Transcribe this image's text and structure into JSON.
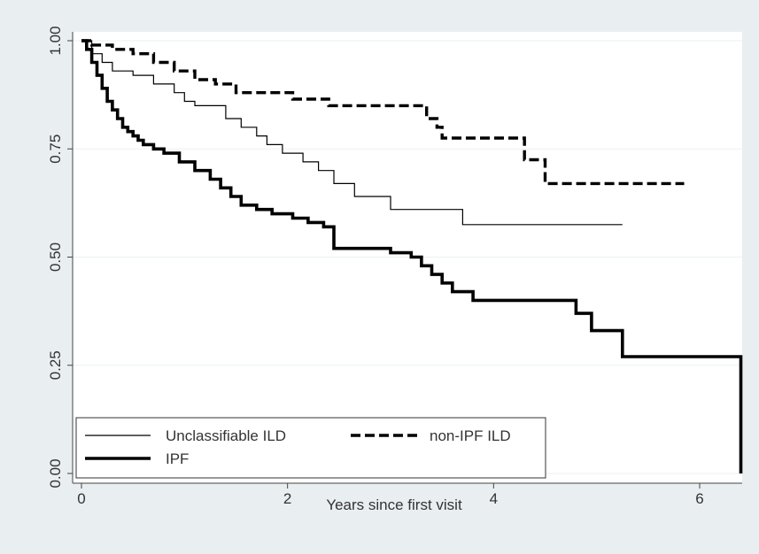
{
  "chart_data": {
    "type": "line",
    "step": true,
    "title": "",
    "xlabel": "Years since first visit",
    "ylabel": "",
    "xlim": [
      0,
      6.5
    ],
    "ylim": [
      0,
      1
    ],
    "x_ticks": [
      0,
      2,
      4,
      6
    ],
    "y_ticks": [
      0,
      0.25,
      0.5,
      0.75,
      1
    ],
    "y_tick_labels": [
      "0.00",
      "0.25",
      "0.50",
      "0.75",
      "1.00"
    ],
    "grid": true,
    "legend_placement": "bottom-left",
    "colors": {
      "outer_bg": "#e9eef1",
      "plot_bg": "#ffffff",
      "line": "#000000",
      "grid": "#eaf2f3"
    },
    "series": [
      {
        "name": "Unclassifiable ILD",
        "style": "thin",
        "x": [
          0,
          0.1,
          0.2,
          0.3,
          0.5,
          0.7,
          0.9,
          1.0,
          1.1,
          1.4,
          1.55,
          1.7,
          1.8,
          1.95,
          2.15,
          2.3,
          2.45,
          2.65,
          2.85,
          3.0,
          3.7,
          5.25
        ],
        "y": [
          1.0,
          0.97,
          0.95,
          0.93,
          0.92,
          0.9,
          0.88,
          0.86,
          0.85,
          0.82,
          0.8,
          0.78,
          0.76,
          0.74,
          0.72,
          0.7,
          0.67,
          0.64,
          0.64,
          0.61,
          0.575,
          0.575
        ]
      },
      {
        "name": "non-IPF ILD",
        "style": "dashed",
        "x": [
          0,
          0.1,
          0.3,
          0.5,
          0.7,
          0.9,
          1.1,
          1.3,
          1.5,
          1.7,
          2.05,
          2.4,
          3.35,
          3.45,
          3.5,
          4.2,
          4.3,
          4.5,
          5.85
        ],
        "y": [
          1.0,
          0.99,
          0.98,
          0.97,
          0.95,
          0.93,
          0.91,
          0.9,
          0.88,
          0.88,
          0.865,
          0.85,
          0.82,
          0.8,
          0.775,
          0.775,
          0.725,
          0.67,
          0.67
        ]
      },
      {
        "name": "IPF",
        "style": "thick",
        "x": [
          0,
          0.05,
          0.1,
          0.15,
          0.2,
          0.25,
          0.3,
          0.35,
          0.4,
          0.45,
          0.5,
          0.55,
          0.6,
          0.7,
          0.8,
          0.95,
          1.1,
          1.25,
          1.35,
          1.45,
          1.55,
          1.7,
          1.85,
          2.05,
          2.2,
          2.35,
          2.45,
          3.0,
          3.2,
          3.3,
          3.4,
          3.5,
          3.6,
          3.8,
          4.8,
          4.95,
          5.25,
          5.5,
          6.4
        ],
        "y": [
          1.0,
          0.98,
          0.95,
          0.92,
          0.89,
          0.86,
          0.84,
          0.82,
          0.8,
          0.79,
          0.78,
          0.77,
          0.76,
          0.75,
          0.74,
          0.72,
          0.7,
          0.68,
          0.66,
          0.64,
          0.62,
          0.61,
          0.6,
          0.59,
          0.58,
          0.57,
          0.52,
          0.51,
          0.5,
          0.48,
          0.46,
          0.44,
          0.42,
          0.4,
          0.37,
          0.33,
          0.27,
          0.27,
          0.0
        ]
      }
    ]
  }
}
